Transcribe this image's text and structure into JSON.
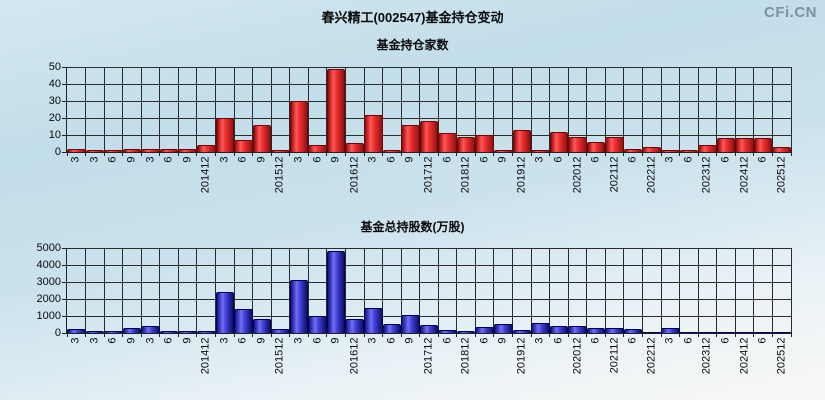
{
  "header": {
    "title": "春兴精工(002547)基金持仓变动",
    "logo": "CFi.CN",
    "logo_color": "#7d929e"
  },
  "chart_data": [
    {
      "type": "bar",
      "title": "基金持仓家数",
      "color_name": "red",
      "bar_color": "#ee2222",
      "ylim": [
        0,
        50
      ],
      "yticks": [
        0,
        10,
        20,
        30,
        40,
        50
      ],
      "grid": "on",
      "categories": [
        "3",
        "3",
        "6",
        "9",
        "3",
        "6",
        "9",
        "201412",
        "3",
        "6",
        "9",
        "201512",
        "3",
        "6",
        "9",
        "201612",
        "3",
        "6",
        "9",
        "201712",
        "6",
        "201812",
        "6",
        "9",
        "201912",
        "3",
        "6",
        "202012",
        "6",
        "202112",
        "6",
        "202212",
        "3",
        "6",
        "202312",
        "6",
        "202412",
        "6",
        "202512"
      ],
      "values": [
        2,
        1,
        1,
        2,
        2,
        2,
        2,
        4,
        20,
        7,
        16,
        1,
        30,
        4,
        49,
        5,
        22,
        1,
        16,
        18,
        11,
        9,
        10,
        1,
        13,
        1,
        12,
        9,
        6,
        9,
        2,
        3,
        1,
        1,
        4,
        8,
        8,
        8,
        3
      ]
    },
    {
      "type": "bar",
      "title": "基金总持股数(万股)",
      "color_name": "blue",
      "bar_color": "#3333cc",
      "ylim": [
        0,
        5000
      ],
      "yticks": [
        0,
        1000,
        2000,
        3000,
        4000,
        5000
      ],
      "grid": "on",
      "categories": [
        "3",
        "3",
        "6",
        "9",
        "3",
        "6",
        "9",
        "201412",
        "3",
        "6",
        "9",
        "201512",
        "3",
        "6",
        "9",
        "201612",
        "3",
        "6",
        "9",
        "201712",
        "6",
        "201812",
        "6",
        "9",
        "201912",
        "3",
        "6",
        "202012",
        "6",
        "202112",
        "6",
        "202212",
        "3",
        "6",
        "202312",
        "6",
        "202412",
        "6",
        "202512"
      ],
      "values": [
        250,
        100,
        100,
        300,
        400,
        100,
        100,
        100,
        2400,
        1400,
        800,
        250,
        3100,
        1000,
        4800,
        800,
        1450,
        550,
        1050,
        450,
        200,
        100,
        350,
        550,
        200,
        600,
        400,
        400,
        300,
        300,
        250,
        50,
        300,
        50,
        50,
        50,
        50,
        50,
        30
      ]
    }
  ]
}
